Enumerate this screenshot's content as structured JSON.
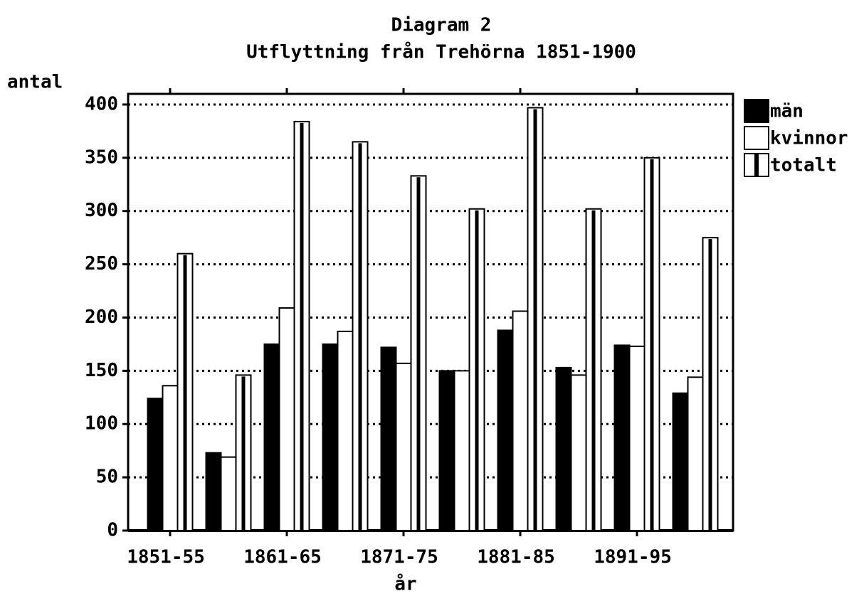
{
  "chart_data": {
    "type": "bar",
    "title": "Diagram 2",
    "subtitle": "Utflyttning från Trehörna 1851-1900",
    "y_label": "antal",
    "x_label": "år",
    "categories": [
      "1851-55",
      null,
      "1861-65",
      null,
      "1871-75",
      null,
      "1881-85",
      null,
      "1891-95",
      null
    ],
    "series": [
      {
        "name": "män",
        "color": "#000000",
        "values": [
          124,
          73,
          175,
          175,
          172,
          150,
          188,
          153,
          174,
          129
        ]
      },
      {
        "name": "kvinnor",
        "color": "#ffffff",
        "values": [
          136,
          69,
          209,
          187,
          157,
          150,
          206,
          146,
          173,
          144
        ]
      },
      {
        "name": "totalt",
        "color": "#ffffff",
        "values": [
          260,
          146,
          384,
          365,
          333,
          302,
          397,
          302,
          350,
          275
        ]
      }
    ],
    "ylim": [
      0,
      410
    ],
    "yticks": [
      0,
      50,
      100,
      150,
      200,
      250,
      300,
      350,
      400
    ],
    "grid": true,
    "legend": "right"
  }
}
